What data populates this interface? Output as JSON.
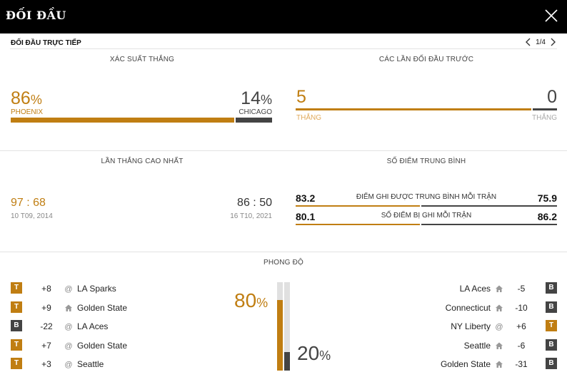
{
  "header": {
    "title": "ĐỐI ĐẦU"
  },
  "subheader": {
    "label": "ĐỐI ĐẦU TRỰC TIẾP",
    "pager": "1/4"
  },
  "win_probability": {
    "title": "XÁC SUẤT THẮNG",
    "left": {
      "value": "86",
      "pct": "%",
      "team": "PHOENIX",
      "fraction": 0.86
    },
    "right": {
      "value": "14",
      "pct": "%",
      "team": "CHICAGO",
      "fraction": 0.14
    }
  },
  "previous_meetings": {
    "title": "CÁC LẦN ĐỐI ĐẦU TRƯỚC",
    "left": {
      "value": "5",
      "label": "THẮNG"
    },
    "right": {
      "value": "0",
      "label": "THẮNG"
    }
  },
  "biggest_win": {
    "title": "LẦN THẮNG CAO NHẤT",
    "left": {
      "a": "97",
      "sep": ":",
      "b": "68",
      "date": "10 T09, 2014"
    },
    "right": {
      "a": "86",
      "sep": ":",
      "b": "50",
      "date": "16 T10, 2021"
    }
  },
  "average_points": {
    "title": "SỐ ĐIỂM TRUNG BÌNH",
    "rows": [
      {
        "left": "83.2",
        "label": "ĐIỂM GHI ĐƯỢC TRUNG BÌNH MỖI TRẬN",
        "right": "75.9"
      },
      {
        "left": "80.1",
        "label": "SỐ ĐIỂM BỊ GHI MỖI TRẬN",
        "right": "86.2"
      }
    ]
  },
  "form": {
    "title": "PHONG ĐỘ",
    "left_pct": "80",
    "right_pct": "20",
    "pct_sign": "%",
    "left_fraction": 0.8,
    "right_fraction": 0.2,
    "left": [
      {
        "badge": "T",
        "score": "+8",
        "venue": "away",
        "team": "LA Sparks"
      },
      {
        "badge": "T",
        "score": "+9",
        "venue": "home",
        "team": "Golden State"
      },
      {
        "badge": "B",
        "score": "-22",
        "venue": "away",
        "team": "LA Aces"
      },
      {
        "badge": "T",
        "score": "+7",
        "venue": "away",
        "team": "Golden State"
      },
      {
        "badge": "T",
        "score": "+3",
        "venue": "away",
        "team": "Seattle"
      }
    ],
    "right": [
      {
        "badge": "B",
        "score": "-5",
        "venue": "home",
        "team": "LA Aces"
      },
      {
        "badge": "B",
        "score": "-10",
        "venue": "home",
        "team": "Connecticut"
      },
      {
        "badge": "T",
        "score": "+6",
        "venue": "away",
        "team": "NY Liberty"
      },
      {
        "badge": "B",
        "score": "-6",
        "venue": "home",
        "team": "Seattle"
      },
      {
        "badge": "B",
        "score": "-31",
        "venue": "home",
        "team": "Golden State"
      }
    ]
  },
  "colors": {
    "accent": "#c07e12",
    "dark": "#444444",
    "light": "#e0e0e0"
  }
}
